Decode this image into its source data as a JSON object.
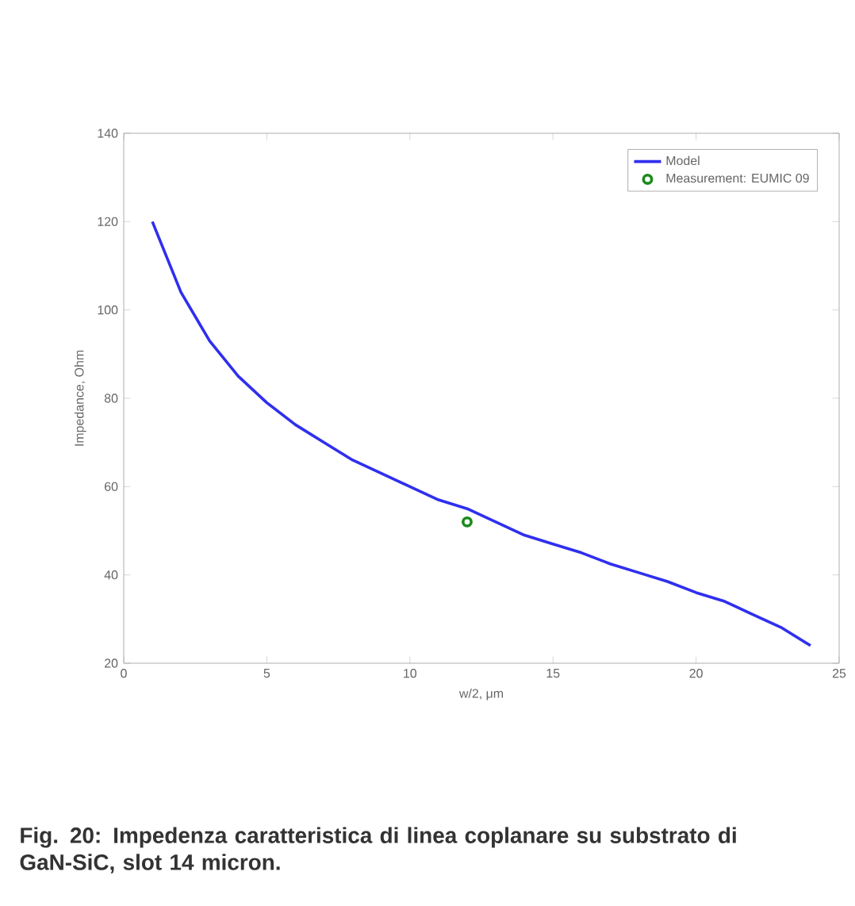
{
  "chart_data": {
    "type": "line",
    "xlabel": "w/2, μm",
    "ylabel": "Impedance, Ohm",
    "xlim": [
      0,
      25
    ],
    "ylim": [
      20,
      140
    ],
    "xticks": [
      0,
      5,
      10,
      15,
      20,
      25
    ],
    "yticks": [
      20,
      40,
      60,
      80,
      100,
      120,
      140
    ],
    "grid": false,
    "legend": "top right",
    "series": [
      {
        "name": "Model",
        "color": "#2f2fef",
        "marker": "none",
        "line_style": "solid",
        "x": [
          1,
          1.5,
          2,
          3,
          4,
          5,
          6,
          7,
          8,
          9,
          10,
          11,
          12,
          13,
          14,
          15,
          16,
          17,
          18,
          19,
          20,
          21,
          22,
          23,
          24
        ],
        "values": [
          120,
          112,
          104,
          93,
          85,
          79,
          74,
          70,
          66,
          63,
          60,
          57,
          55,
          52,
          49,
          47,
          45,
          42.5,
          40.5,
          38.5,
          36,
          34,
          31,
          28,
          24
        ]
      },
      {
        "name": "Measurement: EUMIC 09",
        "type": "scatter",
        "color": "#1a8a1a",
        "marker": "circle",
        "x": [
          12
        ],
        "values": [
          52
        ]
      }
    ],
    "annotations": [
      "Fig. 20: Impedenza caratteristica di linea coplanare su substrato di GaN-SiC, slot 14 micron."
    ]
  }
}
